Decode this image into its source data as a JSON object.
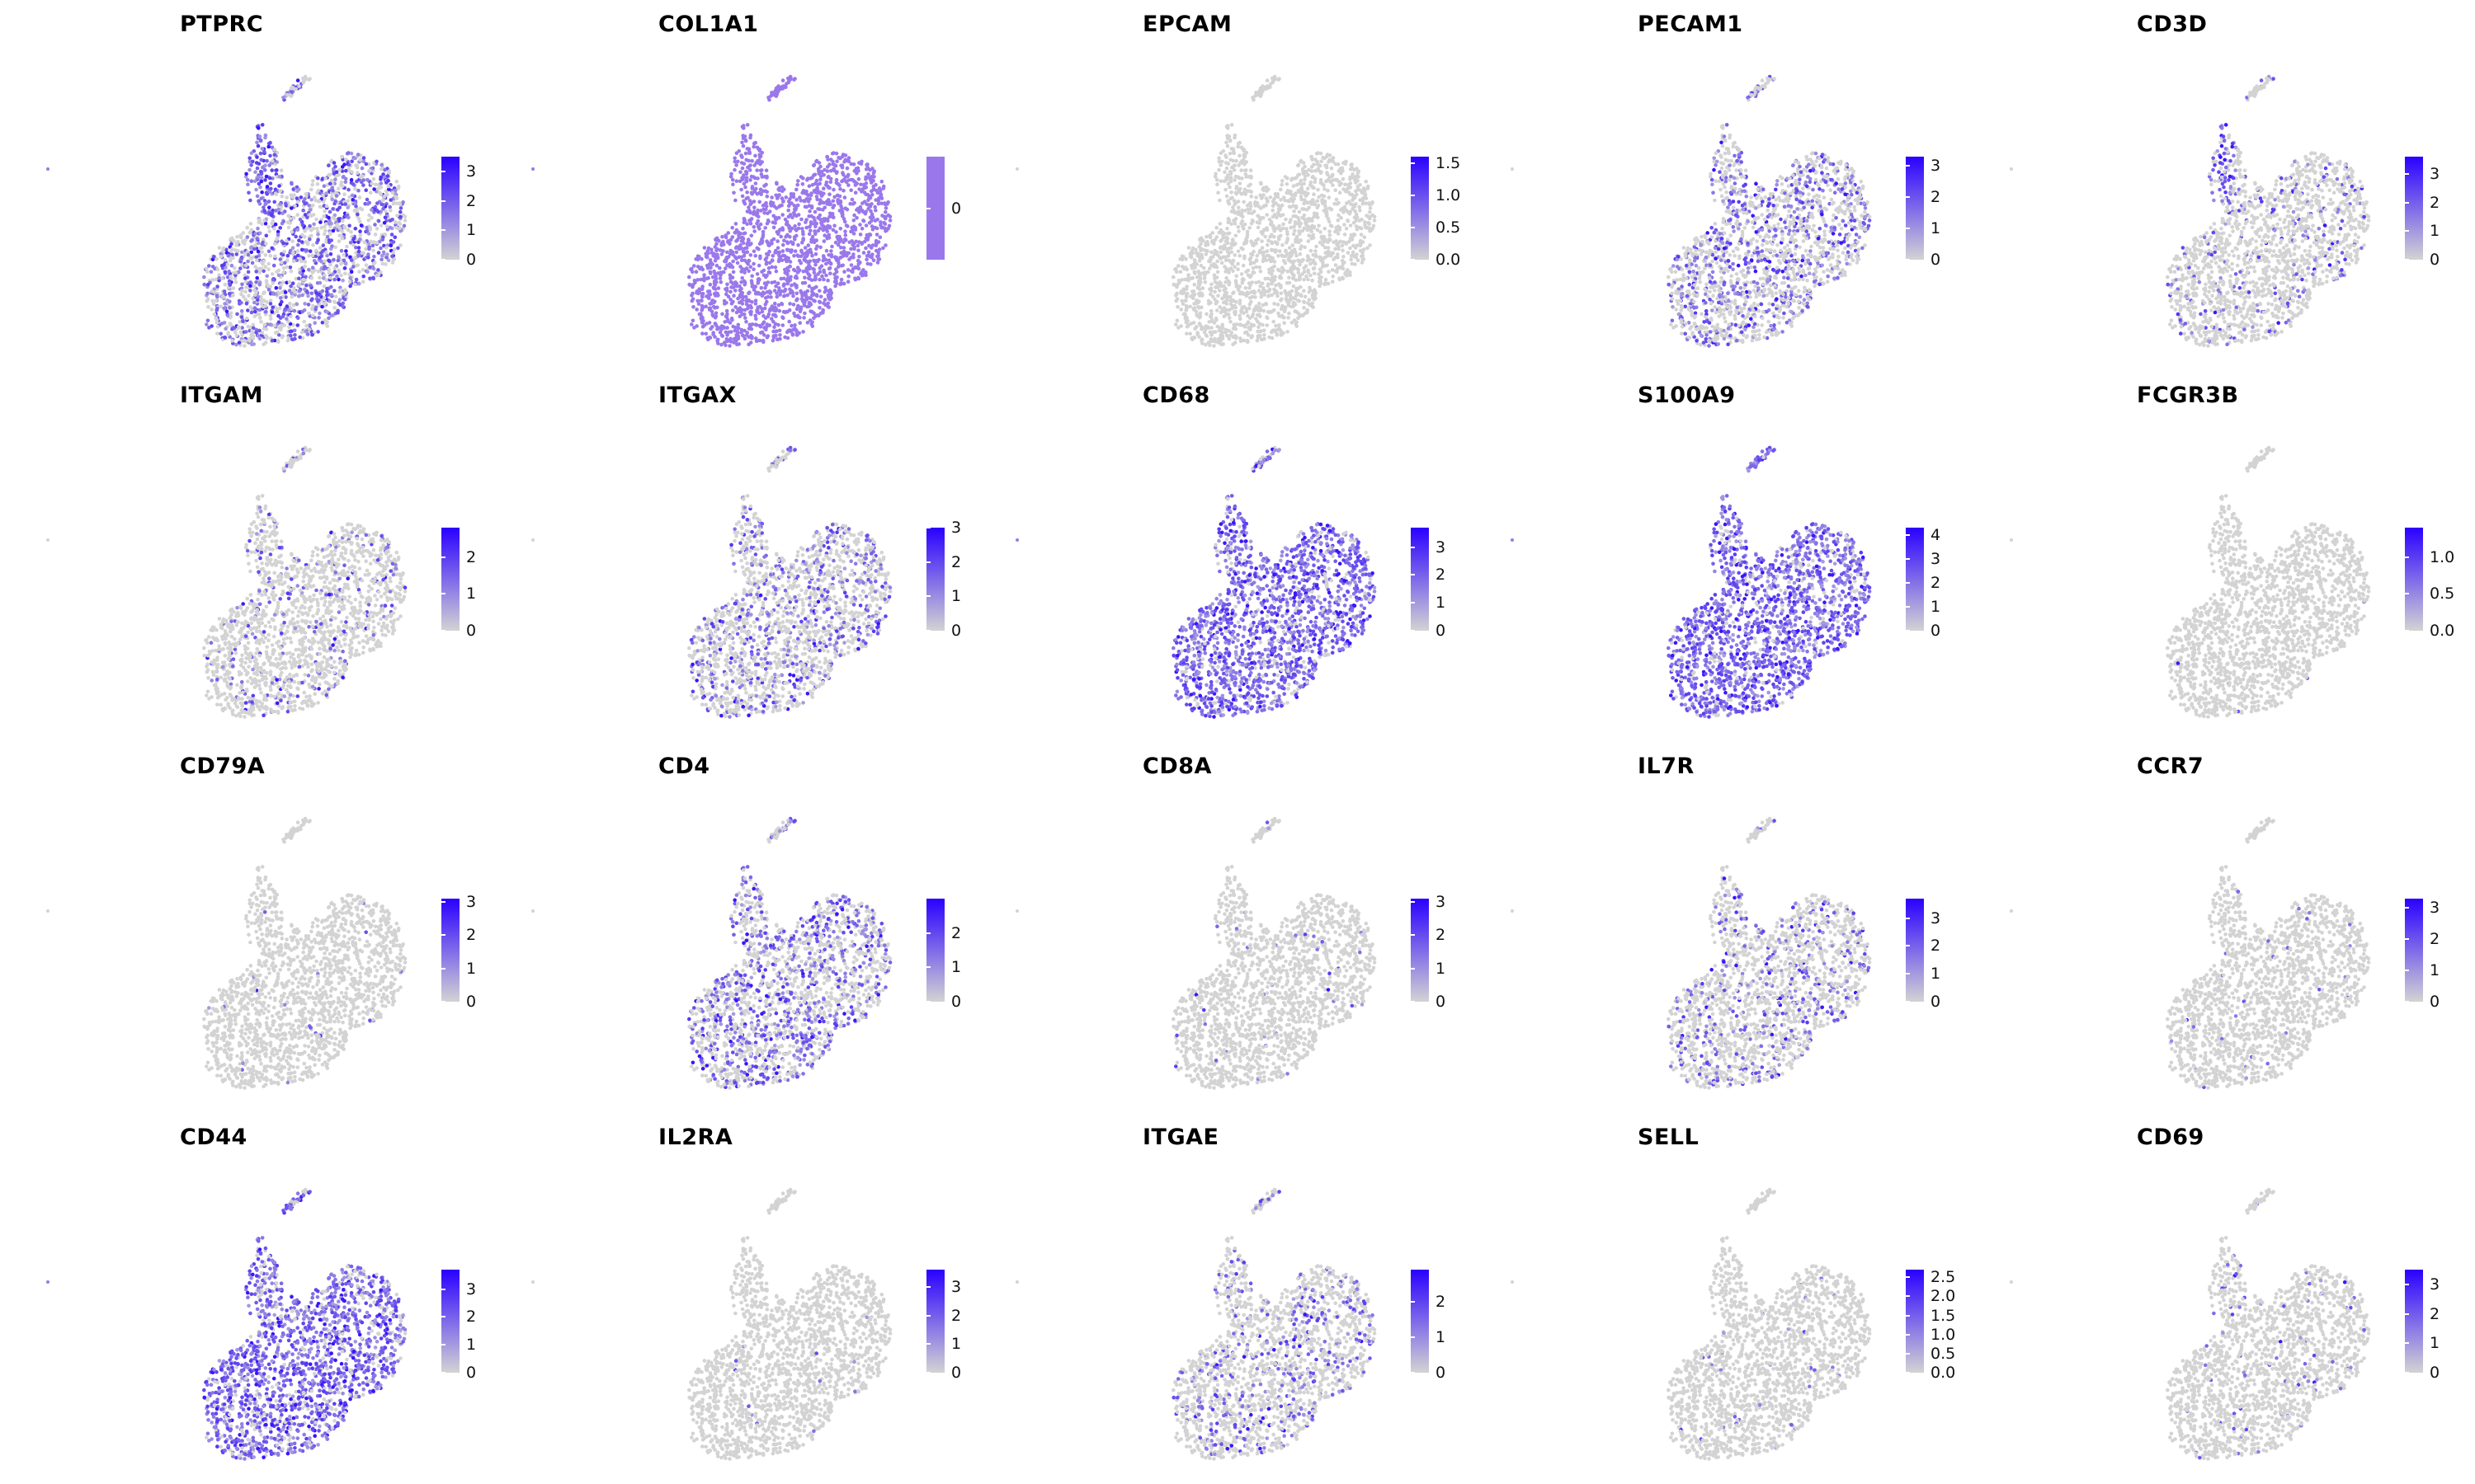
{
  "chart_data": {
    "type": "scatter",
    "subtype": "umap-feature-plot",
    "layout": "4 rows x 5 columns",
    "color_low": "#d3d3d3",
    "color_high": "#2a00ff",
    "panels": [
      {
        "gene": "PTPRC",
        "ticks": [
          "0",
          "1",
          "2",
          "3"
        ],
        "tick_values": [
          0,
          1,
          2,
          3
        ],
        "max": 3.5,
        "level": 0.55,
        "cluster_hi": "northwest"
      },
      {
        "gene": "COL1A1",
        "ticks": [
          "0"
        ],
        "tick_values": [
          0
        ],
        "max": 0,
        "level": 1.0,
        "uniform": true
      },
      {
        "gene": "EPCAM",
        "ticks": [
          "0.0",
          "0.5",
          "1.0",
          "1.5"
        ],
        "tick_values": [
          0,
          0.5,
          1.0,
          1.5
        ],
        "max": 1.6,
        "level": 0.0
      },
      {
        "gene": "PECAM1",
        "ticks": [
          "0",
          "1",
          "2",
          "3"
        ],
        "tick_values": [
          0,
          1,
          2,
          3
        ],
        "max": 3.3,
        "level": 0.35
      },
      {
        "gene": "CD3D",
        "ticks": [
          "0",
          "1",
          "2",
          "3"
        ],
        "tick_values": [
          0,
          1,
          2,
          3
        ],
        "max": 3.6,
        "level": 0.12,
        "cluster_hi": "northwest"
      },
      {
        "gene": "ITGAM",
        "ticks": [
          "0",
          "1",
          "2"
        ],
        "tick_values": [
          0,
          1,
          2
        ],
        "max": 2.8,
        "level": 0.12
      },
      {
        "gene": "ITGAX",
        "ticks": [
          "0",
          "1",
          "2",
          "3"
        ],
        "tick_values": [
          0,
          1,
          2,
          3
        ],
        "max": 3.0,
        "level": 0.3
      },
      {
        "gene": "CD68",
        "ticks": [
          "0",
          "1",
          "2",
          "3"
        ],
        "tick_values": [
          0,
          1,
          2,
          3
        ],
        "max": 3.7,
        "level": 0.85
      },
      {
        "gene": "S100A9",
        "ticks": [
          "0",
          "1",
          "2",
          "3",
          "4"
        ],
        "tick_values": [
          0,
          1,
          2,
          3,
          4
        ],
        "max": 4.3,
        "level": 0.85
      },
      {
        "gene": "FCGR3B",
        "ticks": [
          "0.0",
          "0.5",
          "1.0"
        ],
        "tick_values": [
          0,
          0.5,
          1.0
        ],
        "max": 1.4,
        "level": 0.003
      },
      {
        "gene": "CD79A",
        "ticks": [
          "0",
          "1",
          "2",
          "3"
        ],
        "tick_values": [
          0,
          1,
          2,
          3
        ],
        "max": 3.1,
        "level": 0.01
      },
      {
        "gene": "CD4",
        "ticks": [
          "0",
          "1",
          "2"
        ],
        "tick_values": [
          0,
          1,
          2
        ],
        "max": 3.0,
        "level": 0.4
      },
      {
        "gene": "CD8A",
        "ticks": [
          "0",
          "1",
          "2",
          "3"
        ],
        "tick_values": [
          0,
          1,
          2,
          3
        ],
        "max": 3.1,
        "level": 0.02
      },
      {
        "gene": "IL7R",
        "ticks": [
          "0",
          "1",
          "2",
          "3"
        ],
        "tick_values": [
          0,
          1,
          2,
          3
        ],
        "max": 3.7,
        "level": 0.2
      },
      {
        "gene": "CCR7",
        "ticks": [
          "0",
          "1",
          "2",
          "3"
        ],
        "tick_values": [
          0,
          1,
          2,
          3
        ],
        "max": 3.3,
        "level": 0.02
      },
      {
        "gene": "CD44",
        "ticks": [
          "0",
          "1",
          "2",
          "3"
        ],
        "tick_values": [
          0,
          1,
          2,
          3
        ],
        "max": 3.7,
        "level": 0.8
      },
      {
        "gene": "IL2RA",
        "ticks": [
          "0",
          "1",
          "2",
          "3"
        ],
        "tick_values": [
          0,
          1,
          2,
          3
        ],
        "max": 3.6,
        "level": 0.01
      },
      {
        "gene": "ITGAE",
        "ticks": [
          "0",
          "1",
          "2"
        ],
        "tick_values": [
          0,
          1,
          2
        ],
        "max": 2.9,
        "level": 0.2
      },
      {
        "gene": "SELL",
        "ticks": [
          "0.0",
          "0.5",
          "1.0",
          "1.5",
          "2.0",
          "2.5"
        ],
        "tick_values": [
          0,
          0.5,
          1.0,
          1.5,
          2.0,
          2.5
        ],
        "max": 2.7,
        "level": 0.02
      },
      {
        "gene": "CD69",
        "ticks": [
          "0",
          "1",
          "2",
          "3"
        ],
        "tick_values": [
          0,
          1,
          2,
          3
        ],
        "max": 3.5,
        "level": 0.04
      }
    ]
  }
}
